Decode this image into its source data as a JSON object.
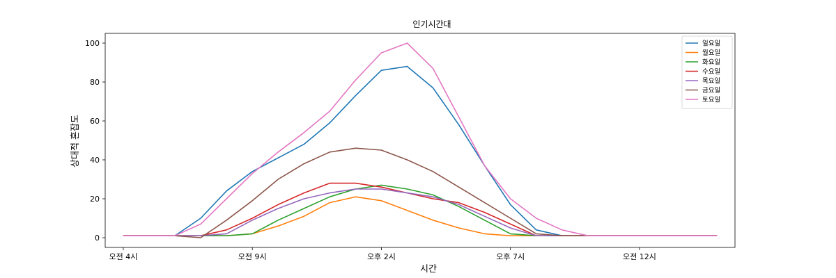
{
  "chart_data": {
    "type": "line",
    "title": "인기시간대",
    "xlabel": "시간",
    "ylabel": "상대적 혼잡도",
    "xlim": [
      -0.7,
      23.7
    ],
    "ylim": [
      -5,
      105
    ],
    "x_ticks": [
      {
        "x": 0,
        "label": "오전 4시"
      },
      {
        "x": 5,
        "label": "오전 9시"
      },
      {
        "x": 10,
        "label": "오후 2시"
      },
      {
        "x": 15,
        "label": "오후 7시"
      },
      {
        "x": 20,
        "label": "오전 12시"
      }
    ],
    "y_ticks": [
      0,
      20,
      40,
      60,
      80,
      100
    ],
    "legend_position": "top-right",
    "x": [
      0,
      1,
      2,
      3,
      4,
      5,
      6,
      7,
      8,
      9,
      10,
      11,
      12,
      13,
      14,
      15,
      16,
      17,
      18,
      19,
      20,
      21,
      22,
      23
    ],
    "series": [
      {
        "name": "일요일",
        "color": "#1f77b4",
        "values": [
          1,
          1,
          1,
          10,
          24,
          34,
          41,
          48,
          59,
          73,
          86,
          88,
          77,
          58,
          37,
          17,
          4,
          1,
          1,
          1,
          1,
          1,
          1,
          1
        ]
      },
      {
        "name": "월요일",
        "color": "#ff7f0e",
        "values": [
          1,
          1,
          1,
          1,
          1,
          2,
          6,
          11,
          18,
          21,
          19,
          14,
          9,
          5,
          2,
          1,
          1,
          1,
          1,
          1,
          1,
          1,
          1,
          1
        ]
      },
      {
        "name": "화요일",
        "color": "#2ca02c",
        "values": [
          1,
          1,
          1,
          1,
          1,
          2,
          9,
          15,
          21,
          25,
          27,
          25,
          22,
          16,
          9,
          2,
          1,
          1,
          1,
          1,
          1,
          1,
          1,
          1
        ]
      },
      {
        "name": "수요일",
        "color": "#d62728",
        "values": [
          1,
          1,
          1,
          1,
          4,
          10,
          17,
          23,
          28,
          28,
          26,
          23,
          20,
          18,
          13,
          7,
          1,
          1,
          1,
          1,
          1,
          1,
          1,
          1
        ]
      },
      {
        "name": "목요일",
        "color": "#9467bd",
        "values": [
          1,
          1,
          1,
          1,
          2,
          9,
          15,
          20,
          23,
          25,
          25,
          23,
          21,
          17,
          11,
          5,
          1,
          1,
          1,
          1,
          1,
          1,
          1,
          1
        ]
      },
      {
        "name": "금요일",
        "color": "#8c564b",
        "values": [
          1,
          1,
          1,
          0,
          9,
          19,
          30,
          38,
          44,
          46,
          45,
          40,
          34,
          26,
          18,
          10,
          2,
          1,
          1,
          1,
          1,
          1,
          1,
          1
        ]
      },
      {
        "name": "토요일",
        "color": "#e377c2",
        "values": [
          1,
          1,
          1,
          7,
          20,
          33,
          44,
          54,
          65,
          81,
          95,
          100,
          87,
          62,
          37,
          20,
          10,
          4,
          1,
          1,
          1,
          1,
          1,
          1
        ]
      }
    ]
  }
}
